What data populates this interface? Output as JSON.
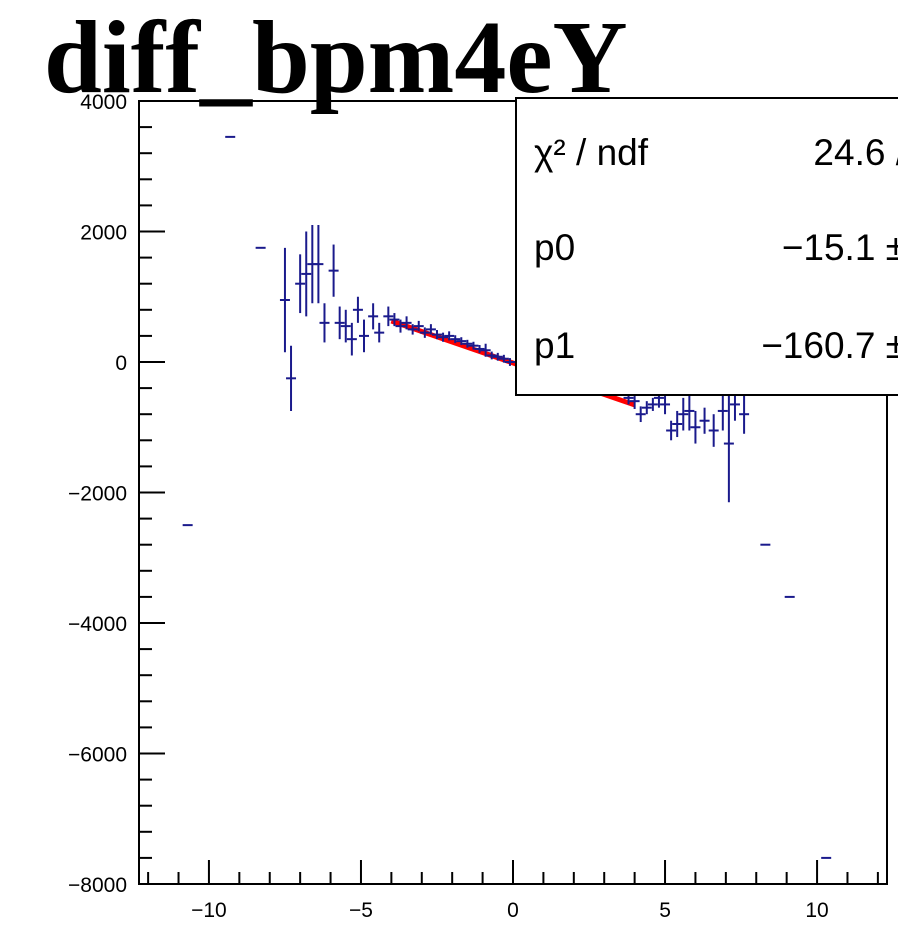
{
  "chart_data": {
    "type": "scatter",
    "title": "diff_bpm4eY",
    "xlabel": "",
    "ylabel": "",
    "xlim": [
      -12.3,
      12.3
    ],
    "ylim": [
      -8000,
      4000
    ],
    "x_ticks": [
      -10,
      -5,
      0,
      5,
      10
    ],
    "x_tick_labels": [
      "−10",
      "−5",
      "0",
      "5",
      "10"
    ],
    "y_ticks": [
      4000,
      2000,
      0,
      -2000,
      -4000,
      -6000,
      -8000
    ],
    "y_tick_labels": [
      "4000",
      "2000",
      "0",
      "−2000",
      "−4000",
      "−6000",
      "−8000"
    ],
    "grid": false,
    "legend": "none",
    "colors": {
      "data": "#1a1a8c",
      "fit": "#ff0000",
      "axis": "#000000"
    },
    "series": [
      {
        "type": "errorbar",
        "points": [
          {
            "x": -10.7,
            "y": -2500,
            "err": 0
          },
          {
            "x": -9.3,
            "y": 3450,
            "err": 0
          },
          {
            "x": -8.3,
            "y": 1750,
            "err": 0
          },
          {
            "x": -7.5,
            "y": 950,
            "err": 800
          },
          {
            "x": -7.3,
            "y": -250,
            "err": 500
          },
          {
            "x": -7.0,
            "y": 1200,
            "err": 450
          },
          {
            "x": -6.8,
            "y": 1350,
            "err": 650
          },
          {
            "x": -6.6,
            "y": 1500,
            "err": 600
          },
          {
            "x": -6.4,
            "y": 1500,
            "err": 600
          },
          {
            "x": -6.2,
            "y": 600,
            "err": 300
          },
          {
            "x": -5.9,
            "y": 1400,
            "err": 400
          },
          {
            "x": -5.7,
            "y": 600,
            "err": 250
          },
          {
            "x": -5.5,
            "y": 550,
            "err": 250
          },
          {
            "x": -5.3,
            "y": 350,
            "err": 250
          },
          {
            "x": -5.1,
            "y": 800,
            "err": 200
          },
          {
            "x": -4.9,
            "y": 400,
            "err": 250
          },
          {
            "x": -4.6,
            "y": 700,
            "err": 200
          },
          {
            "x": -4.4,
            "y": 450,
            "err": 150
          },
          {
            "x": -4.1,
            "y": 700,
            "err": 150
          },
          {
            "x": -3.9,
            "y": 650,
            "err": 100
          },
          {
            "x": -3.7,
            "y": 550,
            "err": 100
          },
          {
            "x": -3.5,
            "y": 600,
            "err": 100
          },
          {
            "x": -3.3,
            "y": 500,
            "err": 80
          },
          {
            "x": -3.1,
            "y": 550,
            "err": 80
          },
          {
            "x": -2.9,
            "y": 450,
            "err": 80
          },
          {
            "x": -2.7,
            "y": 500,
            "err": 80
          },
          {
            "x": -2.5,
            "y": 420,
            "err": 70
          },
          {
            "x": -2.3,
            "y": 380,
            "err": 70
          },
          {
            "x": -2.1,
            "y": 400,
            "err": 70
          },
          {
            "x": -1.9,
            "y": 350,
            "err": 60
          },
          {
            "x": -1.7,
            "y": 320,
            "err": 60
          },
          {
            "x": -1.5,
            "y": 280,
            "err": 60
          },
          {
            "x": -1.3,
            "y": 250,
            "err": 60
          },
          {
            "x": -1.1,
            "y": 200,
            "err": 60
          },
          {
            "x": -0.9,
            "y": 180,
            "err": 100
          },
          {
            "x": -0.7,
            "y": 100,
            "err": 60
          },
          {
            "x": -0.5,
            "y": 80,
            "err": 60
          },
          {
            "x": -0.3,
            "y": 50,
            "err": 60
          },
          {
            "x": -0.1,
            "y": 0,
            "err": 60
          },
          {
            "x": 3.8,
            "y": -550,
            "err": 100
          },
          {
            "x": 4.0,
            "y": -600,
            "err": 120
          },
          {
            "x": 4.2,
            "y": -800,
            "err": 120
          },
          {
            "x": 4.4,
            "y": -700,
            "err": 100
          },
          {
            "x": 4.6,
            "y": -650,
            "err": 100
          },
          {
            "x": 4.8,
            "y": -550,
            "err": 150
          },
          {
            "x": 5.0,
            "y": -650,
            "err": 150
          },
          {
            "x": 5.2,
            "y": -1050,
            "err": 150
          },
          {
            "x": 5.4,
            "y": -950,
            "err": 200
          },
          {
            "x": 5.6,
            "y": -800,
            "err": 250
          },
          {
            "x": 5.8,
            "y": -750,
            "err": 300
          },
          {
            "x": 6.0,
            "y": -1000,
            "err": 250
          },
          {
            "x": 6.3,
            "y": -900,
            "err": 200
          },
          {
            "x": 6.6,
            "y": -1050,
            "err": 250
          },
          {
            "x": 6.9,
            "y": -750,
            "err": 300
          },
          {
            "x": 7.1,
            "y": -1250,
            "err": 900
          },
          {
            "x": 7.3,
            "y": -650,
            "err": 250
          },
          {
            "x": 7.6,
            "y": -800,
            "err": 300
          },
          {
            "x": 8.3,
            "y": -2800,
            "err": 0
          },
          {
            "x": 9.1,
            "y": -3600,
            "err": 0
          },
          {
            "x": 10.3,
            "y": -7600,
            "err": 0
          }
        ]
      }
    ],
    "fit": {
      "function": "pol1",
      "x_range": [
        -4,
        4
      ],
      "p0": -15.1,
      "p1": -160.7
    },
    "stats_box": {
      "rows": [
        {
          "label": "χ² / ndf",
          "value": "24.6 /"
        },
        {
          "label": "p0",
          "value": "−15.1 ±"
        },
        {
          "label": "p1",
          "value": "−160.7 ±"
        }
      ]
    }
  }
}
